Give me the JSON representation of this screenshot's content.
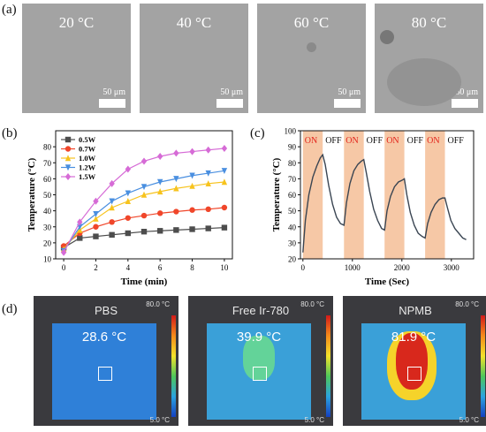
{
  "panels": {
    "a": {
      "label": "(a)",
      "scale_bar": "50 μm",
      "temps": [
        "20 °C",
        "40 °C",
        "60 °C",
        "80 °C"
      ]
    },
    "b": {
      "label": "(b)"
    },
    "c": {
      "label": "(c)"
    },
    "d": {
      "label": "(d)",
      "cbar_max": "80.0 °C",
      "cbar_min": "5.0 °C",
      "images": [
        {
          "name": "PBS",
          "temp": "28.6 °C"
        },
        {
          "name": "Free Ir-780",
          "temp": "39.9 °C"
        },
        {
          "name": "NPMB",
          "temp": "81.9 °C"
        }
      ]
    }
  },
  "chart_data": [
    {
      "type": "line",
      "xlabel": "Time (min)",
      "ylabel": "Temperature (°C)",
      "xlim": [
        -0.5,
        10.5
      ],
      "ylim": [
        10,
        90
      ],
      "xticks": [
        0,
        2,
        4,
        6,
        8,
        10
      ],
      "yticks": [
        10,
        20,
        30,
        40,
        50,
        60,
        70,
        80
      ],
      "legend": "top-left",
      "x": [
        0,
        1,
        2,
        3,
        4,
        5,
        6,
        7,
        8,
        9,
        10
      ],
      "series": [
        {
          "name": "0.5W",
          "color": "#4d4d4d",
          "marker": "square",
          "values": [
            17,
            23,
            24,
            25,
            26,
            27,
            27.5,
            28,
            28.5,
            29,
            29.5
          ]
        },
        {
          "name": "0.7W",
          "color": "#f0462a",
          "marker": "circle",
          "values": [
            18,
            26,
            30,
            33,
            35.5,
            37,
            38.5,
            39.5,
            40.5,
            41,
            42
          ]
        },
        {
          "name": "1.0W",
          "color": "#f7c31d",
          "marker": "triangle",
          "values": [
            16,
            28,
            35,
            42,
            46,
            50,
            52,
            54,
            55.5,
            57,
            58
          ]
        },
        {
          "name": "1.2W",
          "color": "#4a8fe0",
          "marker": "triangle-down",
          "values": [
            15,
            30,
            38,
            46,
            51,
            55,
            58,
            60,
            62,
            63.5,
            65
          ]
        },
        {
          "name": "1.5W",
          "color": "#d66bd6",
          "marker": "diamond",
          "values": [
            14,
            33,
            46,
            57,
            66,
            71,
            74,
            76,
            77,
            78,
            79
          ]
        }
      ]
    },
    {
      "type": "line",
      "xlabel": "Time (Sec)",
      "ylabel": "Temperature (°C)",
      "xlim": [
        -50,
        3450
      ],
      "ylim": [
        20,
        100
      ],
      "xticks": [
        0,
        1000,
        2000,
        3000
      ],
      "yticks": [
        20,
        30,
        40,
        50,
        60,
        70,
        80,
        90,
        100
      ],
      "on_label": "ON",
      "off_label": "OFF",
      "on_intervals": [
        [
          0,
          400
        ],
        [
          830,
          1230
        ],
        [
          1650,
          2050
        ],
        [
          2470,
          2870
        ]
      ],
      "series": [
        {
          "name": "",
          "color": "#3a4552",
          "x": [
            0,
            50,
            120,
            200,
            280,
            350,
            400,
            450,
            520,
            600,
            680,
            760,
            830,
            880,
            950,
            1030,
            1110,
            1180,
            1230,
            1280,
            1350,
            1430,
            1510,
            1590,
            1650,
            1700,
            1770,
            1850,
            1930,
            2000,
            2050,
            2100,
            2170,
            2250,
            2330,
            2410,
            2470,
            2520,
            2590,
            2670,
            2750,
            2820,
            2870,
            2920,
            2990,
            3070,
            3150,
            3230,
            3300
          ],
          "values": [
            24,
            44,
            60,
            71,
            78,
            83,
            85,
            79,
            66,
            54,
            46,
            42,
            41,
            55,
            67,
            75,
            79,
            81,
            82,
            74,
            62,
            51,
            44,
            39,
            38,
            50,
            59,
            65,
            68,
            69,
            70,
            60,
            49,
            41,
            36,
            34,
            33,
            42,
            49,
            54,
            57,
            58,
            58,
            52,
            44,
            39,
            36,
            33,
            32
          ]
        }
      ]
    }
  ]
}
